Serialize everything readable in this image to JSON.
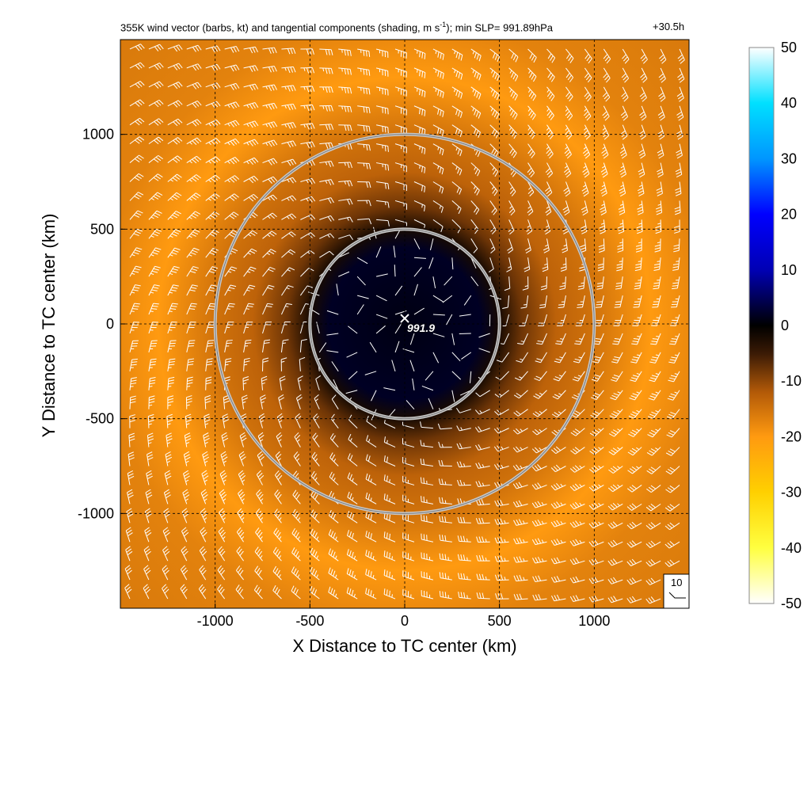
{
  "chart_data": {
    "type": "heatmap",
    "title": "355K wind vector (barbs, kt) and tangential components (shading, m s",
    "title_superscript": "-1",
    "title_suffix": "); min SLP= 991.89hPa",
    "timestamp": "+30.5h",
    "xlabel": "X Distance to TC center (km)",
    "ylabel": "Y Distance to TC center (km)",
    "xlim": [
      -1500,
      1500
    ],
    "ylim": [
      -1500,
      1500
    ],
    "x_ticks": [
      -1000,
      -500,
      0,
      500,
      1000
    ],
    "y_ticks": [
      -1000,
      -500,
      0,
      500,
      1000
    ],
    "x_tick_labels": [
      "-1000",
      "-500",
      "0",
      "500",
      "1000"
    ],
    "y_tick_labels": [
      "-1000",
      "-500",
      "0",
      "500",
      "1000"
    ],
    "grid": true,
    "colorbar": {
      "min": -50,
      "max": 50,
      "ticks": [
        50,
        40,
        30,
        20,
        10,
        0,
        -10,
        -20,
        -30,
        -40,
        -50
      ],
      "tick_labels": [
        "50",
        "40",
        "30",
        "20",
        "10",
        "0",
        "-10",
        "-20",
        "-30",
        "-40",
        "-50"
      ],
      "stops": [
        {
          "value": -50,
          "color": "#ffffff"
        },
        {
          "value": -40,
          "color": "#ffff40"
        },
        {
          "value": -30,
          "color": "#ffd000"
        },
        {
          "value": -20,
          "color": "#ff9a10"
        },
        {
          "value": -12,
          "color": "#b35a08"
        },
        {
          "value": -5,
          "color": "#3a1a05"
        },
        {
          "value": 0,
          "color": "#000000"
        },
        {
          "value": 5,
          "color": "#00005a"
        },
        {
          "value": 10,
          "color": "#0000b4"
        },
        {
          "value": 20,
          "color": "#0000ff"
        },
        {
          "value": 30,
          "color": "#0096ff"
        },
        {
          "value": 40,
          "color": "#00e0ff"
        },
        {
          "value": 50,
          "color": "#ffffff"
        }
      ]
    },
    "tangential_wind_profile": [
      {
        "r_km": 0,
        "v_ms": 1
      },
      {
        "r_km": 400,
        "v_ms": 2
      },
      {
        "r_km": 500,
        "v_ms": -2
      },
      {
        "r_km": 620,
        "v_ms": -8
      },
      {
        "r_km": 800,
        "v_ms": -13
      },
      {
        "r_km": 1000,
        "v_ms": -15
      },
      {
        "r_km": 1300,
        "v_ms": -20
      },
      {
        "r_km": 1600,
        "v_ms": -17
      },
      {
        "r_km": 2100,
        "v_ms": -16
      }
    ],
    "range_circles_km": [
      500,
      1000
    ],
    "center_marker": {
      "x": 0,
      "y": 0,
      "label": "991.9"
    },
    "wind_reference": {
      "label": "10"
    }
  }
}
